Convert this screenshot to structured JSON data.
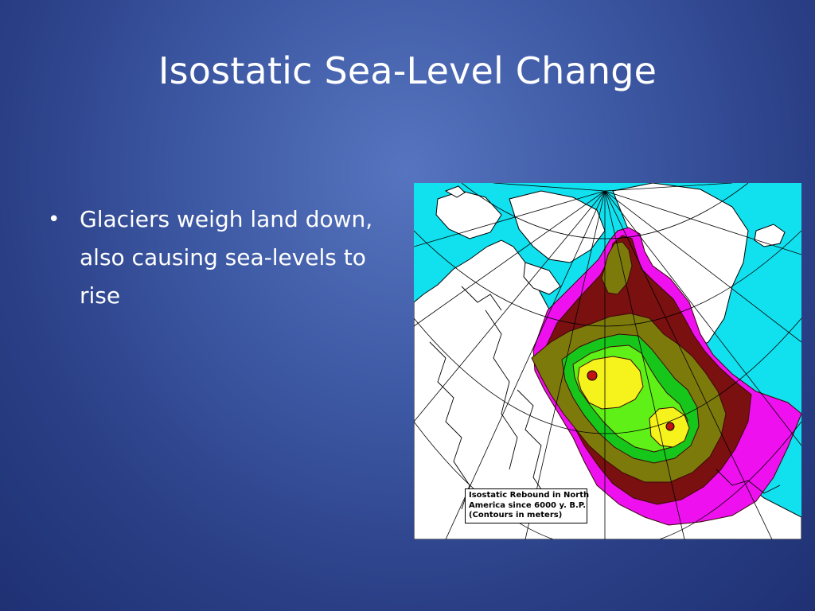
{
  "slide": {
    "title": "Isostatic Sea-Level Change",
    "bullets": [
      {
        "marker": "•",
        "text": " Glaciers weigh land down, also causing sea-levels to rise"
      }
    ]
  },
  "map": {
    "caption_lines": [
      "Isostatic Rebound in North",
      "America since 6000 y. B.P.",
      "(Contours in meters)"
    ],
    "colors": {
      "ocean": "#11e0ef",
      "land": "#ffffff",
      "zone_outer": "#ee10ee",
      "zone_dark": "#7a1010",
      "zone_olive": "#7d7a0c",
      "zone_green": "#16c61a",
      "zone_lightgreen": "#5ef017",
      "zone_yellow": "#f6f21b"
    }
  }
}
